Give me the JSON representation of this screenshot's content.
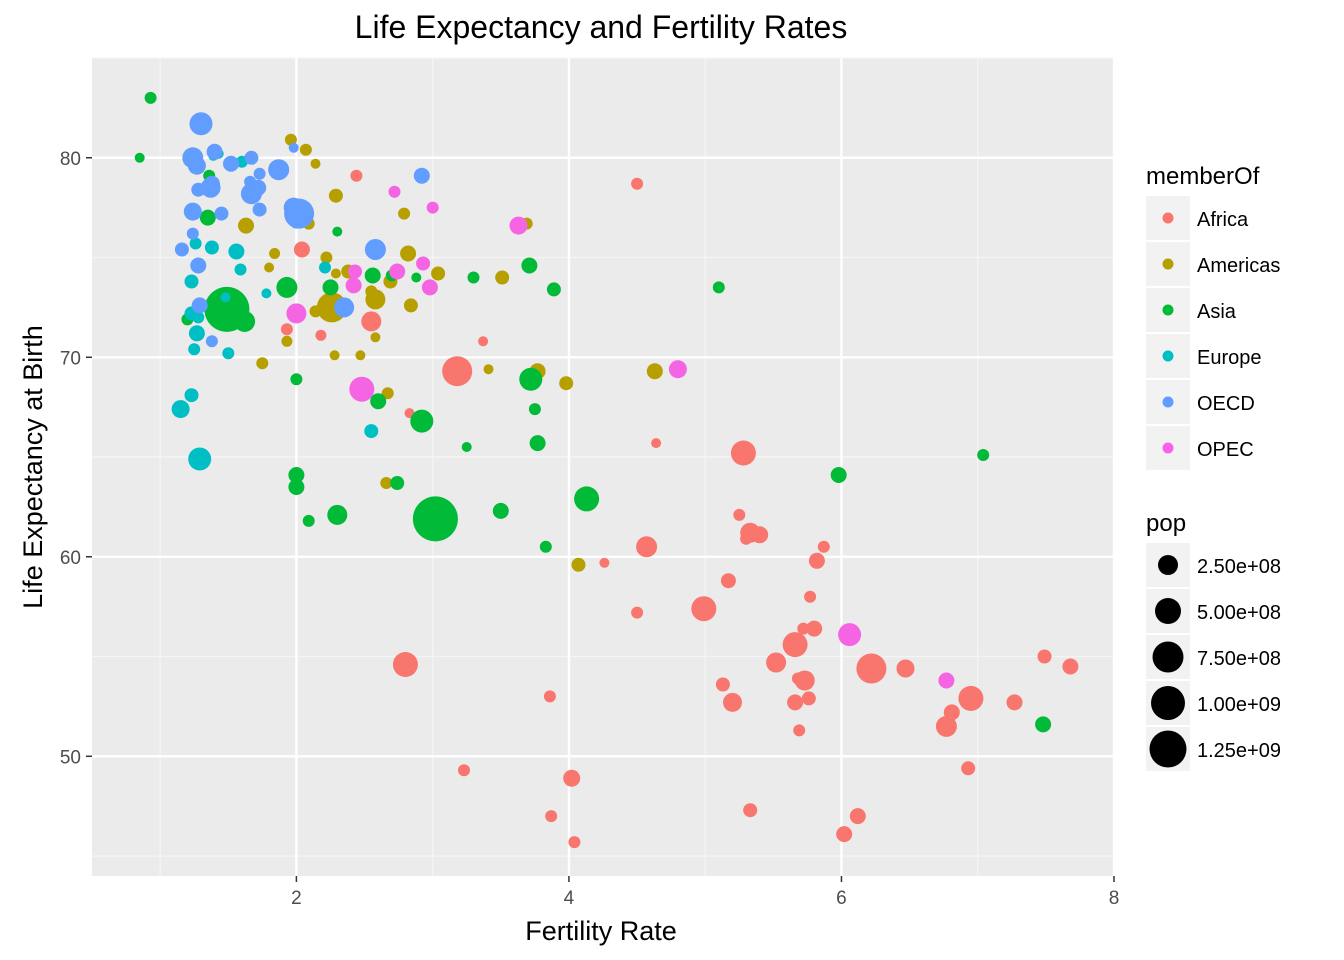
{
  "chart_data": {
    "type": "scatter",
    "title": "Life Expectancy and Fertility Rates",
    "xlabel": "Fertility Rate",
    "ylabel": "Life Expectancy at Birth",
    "xlim": [
      0.5,
      8.0
    ],
    "ylim": [
      44,
      85
    ],
    "x_ticks": [
      "2",
      "4",
      "6",
      "8"
    ],
    "y_ticks": [
      "50",
      "60",
      "70",
      "80"
    ],
    "grid": true,
    "legend_placement": "right",
    "color_legend": {
      "title": "memberOf",
      "entries": [
        {
          "label": "Africa",
          "color": "#F8766D"
        },
        {
          "label": "Americas",
          "color": "#B79F00"
        },
        {
          "label": "Asia",
          "color": "#00BA38"
        },
        {
          "label": "Europe",
          "color": "#00BFC4"
        },
        {
          "label": "OECD",
          "color": "#619CFF"
        },
        {
          "label": "OPEC",
          "color": "#F564E3"
        }
      ]
    },
    "size_legend": {
      "title": "pop",
      "entries": [
        {
          "label": "2.50e+08",
          "value": 250000000
        },
        {
          "label": "5.00e+08",
          "value": 500000000
        },
        {
          "label": "7.50e+08",
          "value": 750000000
        },
        {
          "label": "1.00e+09",
          "value": 1000000000
        },
        {
          "label": "1.25e+09",
          "value": 1250000000
        }
      ]
    },
    "series": [
      {
        "name": "Africa",
        "points": [
          [
            4.5,
            78.7,
            12
          ],
          [
            2.44,
            79.1,
            12
          ],
          [
            2.04,
            75.4,
            16
          ],
          [
            2.55,
            71.8,
            20
          ],
          [
            2.18,
            71.1,
            11
          ],
          [
            1.93,
            71.4,
            12
          ],
          [
            3.37,
            70.8,
            10
          ],
          [
            3.18,
            69.3,
            30
          ],
          [
            4.64,
            65.7,
            10
          ],
          [
            2.83,
            67.2,
            10
          ],
          [
            5.28,
            65.2,
            25
          ],
          [
            5.25,
            62.1,
            12
          ],
          [
            5.33,
            61.2,
            20
          ],
          [
            5.3,
            60.9,
            12
          ],
          [
            5.4,
            61.1,
            17
          ],
          [
            5.87,
            60.5,
            12
          ],
          [
            4.57,
            60.5,
            21
          ],
          [
            4.26,
            59.7,
            10
          ],
          [
            5.82,
            59.8,
            16
          ],
          [
            5.17,
            58.8,
            15
          ],
          [
            5.77,
            58.0,
            12
          ],
          [
            4.5,
            57.2,
            12
          ],
          [
            4.99,
            57.4,
            25
          ],
          [
            5.72,
            56.4,
            12
          ],
          [
            5.8,
            56.4,
            16
          ],
          [
            5.66,
            55.6,
            25
          ],
          [
            5.52,
            54.7,
            20
          ],
          [
            5.68,
            53.9,
            12
          ],
          [
            5.73,
            53.8,
            20
          ],
          [
            5.13,
            53.6,
            14
          ],
          [
            5.76,
            52.9,
            14
          ],
          [
            5.2,
            52.7,
            19
          ],
          [
            5.66,
            52.7,
            16
          ],
          [
            5.69,
            51.3,
            12
          ],
          [
            2.8,
            54.6,
            25
          ],
          [
            3.86,
            53.0,
            12
          ],
          [
            6.22,
            54.4,
            30
          ],
          [
            6.47,
            54.4,
            18
          ],
          [
            7.49,
            55.0,
            14
          ],
          [
            7.68,
            54.5,
            16
          ],
          [
            6.81,
            52.2,
            16
          ],
          [
            6.95,
            52.9,
            25
          ],
          [
            7.27,
            52.7,
            16
          ],
          [
            6.77,
            51.5,
            21
          ],
          [
            6.93,
            49.4,
            14
          ],
          [
            3.23,
            49.3,
            12
          ],
          [
            4.02,
            48.9,
            17
          ],
          [
            5.33,
            47.3,
            14
          ],
          [
            3.87,
            47.0,
            12
          ],
          [
            6.12,
            47.0,
            16
          ],
          [
            4.04,
            45.7,
            12
          ],
          [
            6.02,
            46.1,
            16
          ]
        ]
      },
      {
        "name": "Americas",
        "points": [
          [
            1.96,
            80.9,
            12
          ],
          [
            2.07,
            80.4,
            12
          ],
          [
            2.14,
            79.7,
            10
          ],
          [
            2.29,
            78.1,
            14
          ],
          [
            2.79,
            77.2,
            12
          ],
          [
            3.69,
            76.7,
            12
          ],
          [
            1.63,
            76.6,
            16
          ],
          [
            2.09,
            76.7,
            12
          ],
          [
            1.84,
            75.2,
            11
          ],
          [
            2.22,
            75.0,
            12
          ],
          [
            2.82,
            75.2,
            16
          ],
          [
            1.8,
            74.5,
            10
          ],
          [
            2.38,
            74.3,
            14
          ],
          [
            2.29,
            74.2,
            10
          ],
          [
            3.04,
            74.2,
            14
          ],
          [
            3.51,
            74.0,
            14
          ],
          [
            2.69,
            73.8,
            14
          ],
          [
            2.55,
            73.3,
            12
          ],
          [
            2.26,
            72.5,
            30
          ],
          [
            2.58,
            72.9,
            20
          ],
          [
            2.84,
            72.6,
            14
          ],
          [
            2.14,
            72.3,
            12
          ],
          [
            2.58,
            71.0,
            10
          ],
          [
            1.93,
            70.8,
            11
          ],
          [
            2.28,
            70.1,
            10
          ],
          [
            2.47,
            70.1,
            10
          ],
          [
            1.75,
            69.7,
            12
          ],
          [
            3.41,
            69.4,
            10
          ],
          [
            3.77,
            69.3,
            16
          ],
          [
            4.63,
            69.3,
            16
          ],
          [
            3.98,
            68.7,
            14
          ],
          [
            2.67,
            68.2,
            12
          ],
          [
            2.66,
            63.7,
            12
          ],
          [
            4.07,
            59.6,
            14
          ]
        ]
      },
      {
        "name": "Asia",
        "points": [
          [
            0.93,
            83.0,
            12
          ],
          [
            0.85,
            80.0,
            10
          ],
          [
            1.36,
            79.1,
            12
          ],
          [
            1.35,
            77.0,
            16
          ],
          [
            2.3,
            76.3,
            10
          ],
          [
            3.71,
            74.6,
            16
          ],
          [
            2.56,
            74.1,
            16
          ],
          [
            2.7,
            74.1,
            12
          ],
          [
            2.88,
            74.0,
            10
          ],
          [
            3.3,
            74.0,
            12
          ],
          [
            1.93,
            73.5,
            21
          ],
          [
            2.25,
            73.5,
            16
          ],
          [
            3.89,
            73.4,
            14
          ],
          [
            5.1,
            73.5,
            12
          ],
          [
            1.49,
            72.4,
            45
          ],
          [
            1.56,
            72.4,
            12
          ],
          [
            1.62,
            71.8,
            21
          ],
          [
            1.2,
            71.9,
            12
          ],
          [
            2.0,
            68.9,
            12
          ],
          [
            3.72,
            68.9,
            23
          ],
          [
            3.75,
            67.4,
            12
          ],
          [
            2.6,
            67.8,
            16
          ],
          [
            2.92,
            66.8,
            23
          ],
          [
            3.77,
            65.7,
            16
          ],
          [
            3.25,
            65.5,
            10
          ],
          [
            7.04,
            65.1,
            12
          ],
          [
            5.98,
            64.1,
            16
          ],
          [
            2.0,
            64.1,
            16
          ],
          [
            2.0,
            63.5,
            16
          ],
          [
            2.74,
            63.7,
            14
          ],
          [
            4.13,
            62.9,
            25
          ],
          [
            3.02,
            61.9,
            45
          ],
          [
            2.3,
            62.1,
            20
          ],
          [
            3.5,
            62.3,
            16
          ],
          [
            2.09,
            61.8,
            12
          ],
          [
            3.83,
            60.5,
            12
          ],
          [
            7.48,
            51.6,
            16
          ]
        ]
      },
      {
        "name": "Europe",
        "points": [
          [
            1.39,
            80.1,
            10
          ],
          [
            1.6,
            79.8,
            12
          ],
          [
            1.43,
            80.2,
            10
          ],
          [
            1.26,
            75.7,
            12
          ],
          [
            1.38,
            75.5,
            14
          ],
          [
            1.56,
            75.3,
            16
          ],
          [
            1.59,
            74.4,
            12
          ],
          [
            1.23,
            73.8,
            14
          ],
          [
            1.48,
            73.0,
            10
          ],
          [
            1.78,
            73.2,
            10
          ],
          [
            1.23,
            72.2,
            14
          ],
          [
            1.28,
            72.0,
            12
          ],
          [
            1.27,
            71.2,
            16
          ],
          [
            1.25,
            70.4,
            12
          ],
          [
            1.5,
            70.2,
            12
          ],
          [
            1.23,
            68.1,
            14
          ],
          [
            1.15,
            67.4,
            18
          ],
          [
            2.21,
            74.5,
            12
          ],
          [
            2.0,
            76.8,
            14
          ],
          [
            2.55,
            66.3,
            14
          ],
          [
            1.29,
            64.9,
            23
          ]
        ]
      },
      {
        "name": "OECD",
        "points": [
          [
            1.3,
            81.7,
            23
          ],
          [
            1.24,
            80.0,
            21
          ],
          [
            1.27,
            79.6,
            18
          ],
          [
            1.4,
            80.3,
            16
          ],
          [
            1.52,
            79.7,
            16
          ],
          [
            1.67,
            80.0,
            14
          ],
          [
            1.73,
            79.2,
            12
          ],
          [
            1.66,
            78.8,
            12
          ],
          [
            1.87,
            79.4,
            21
          ],
          [
            1.98,
            80.5,
            10
          ],
          [
            2.92,
            79.1,
            16
          ],
          [
            1.28,
            78.4,
            14
          ],
          [
            1.37,
            78.5,
            20
          ],
          [
            1.38,
            78.7,
            16
          ],
          [
            1.67,
            78.2,
            21
          ],
          [
            1.72,
            78.5,
            16
          ],
          [
            1.24,
            77.3,
            18
          ],
          [
            1.45,
            77.2,
            14
          ],
          [
            1.73,
            77.4,
            14
          ],
          [
            1.98,
            77.5,
            20
          ],
          [
            2.02,
            77.2,
            30
          ],
          [
            1.24,
            76.2,
            12
          ],
          [
            1.16,
            75.4,
            14
          ],
          [
            2.58,
            75.4,
            21
          ],
          [
            1.28,
            74.6,
            16
          ],
          [
            1.29,
            72.6,
            16
          ],
          [
            1.38,
            70.8,
            12
          ],
          [
            2.35,
            72.5,
            20
          ]
        ]
      },
      {
        "name": "OPEC",
        "points": [
          [
            2.72,
            78.3,
            12
          ],
          [
            3.0,
            77.5,
            12
          ],
          [
            3.63,
            76.6,
            18
          ],
          [
            2.43,
            74.3,
            14
          ],
          [
            2.74,
            74.3,
            16
          ],
          [
            2.93,
            74.7,
            14
          ],
          [
            2.42,
            73.6,
            16
          ],
          [
            2.98,
            73.5,
            16
          ],
          [
            2.0,
            72.2,
            20
          ],
          [
            2.48,
            68.4,
            25
          ],
          [
            4.8,
            69.4,
            18
          ],
          [
            6.06,
            56.1,
            23
          ],
          [
            6.77,
            53.8,
            16
          ]
        ]
      }
    ]
  }
}
